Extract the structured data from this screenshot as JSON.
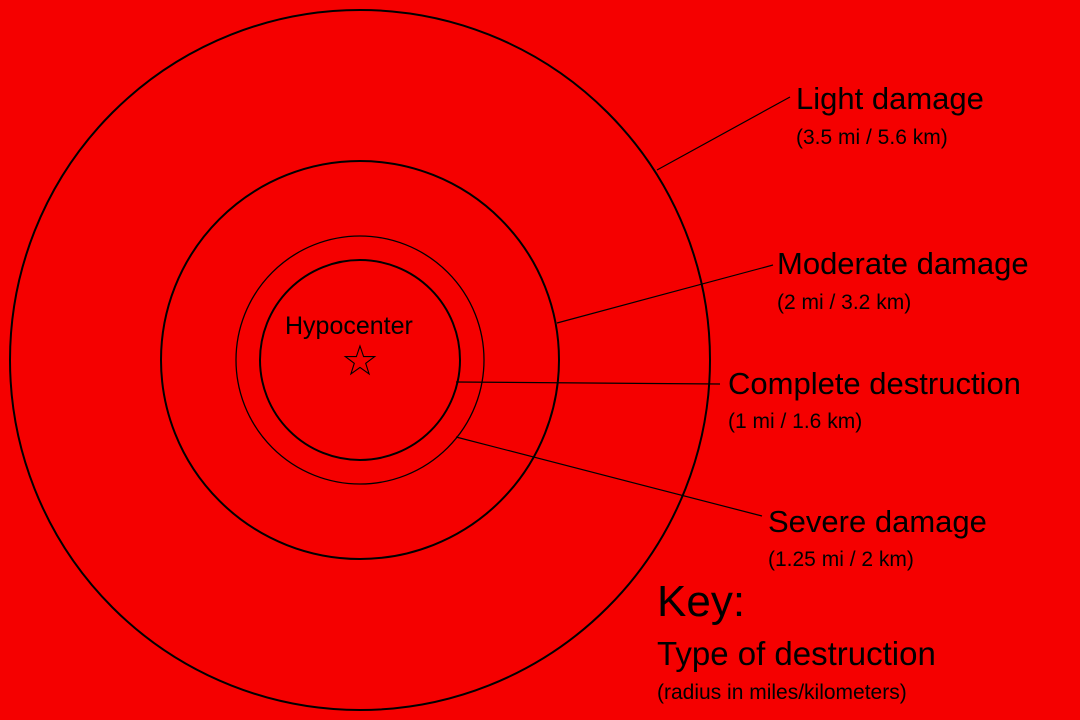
{
  "colors": {
    "background": "#f50000",
    "ink": "#000000"
  },
  "hypocenter": {
    "label": "Hypocenter",
    "icon": "star-icon"
  },
  "zones": [
    {
      "id": "light",
      "name": "Light damage",
      "radius": "(3.5 mi / 5.6 km)"
    },
    {
      "id": "moderate",
      "name": "Moderate damage",
      "radius": "(2 mi / 3.2 km)"
    },
    {
      "id": "complete",
      "name": "Complete destruction",
      "radius": "(1 mi / 1.6 km)"
    },
    {
      "id": "severe",
      "name": "Severe damage",
      "radius": "(1.25 mi / 2 km)"
    }
  ],
  "key": {
    "title": "Key:",
    "subtitle": "Type of destruction",
    "note": "(radius in miles/kilometers)"
  }
}
